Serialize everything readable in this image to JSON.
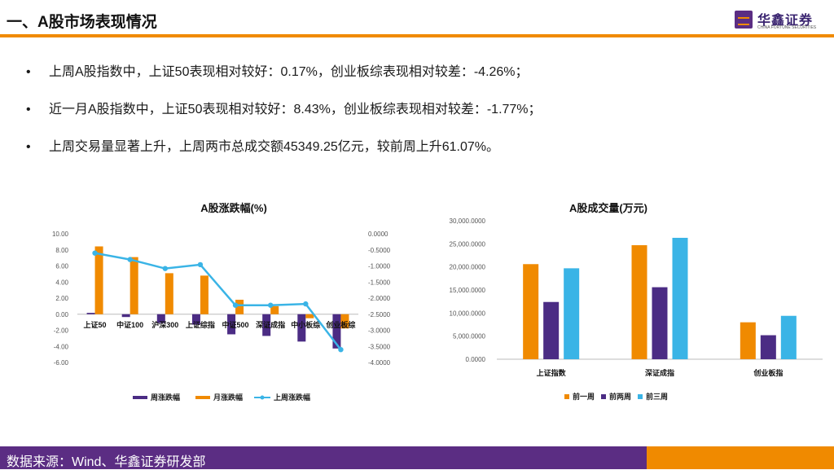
{
  "header": {
    "title": "一、A股市场表现情况"
  },
  "logo": {
    "name": "华鑫证券",
    "sub": "CHINA FORTUNE SECURITIES"
  },
  "bullets": [
    "上周A股指数中，上证50表现相对较好：0.17%，创业板综表现相对较差：-4.26%；",
    "近一月A股指数中，上证50表现相对较好：8.43%，创业板综表现相对较差：-1.77%；",
    "上周交易量显著上升，上周两市总成交额45349.25亿元，较前周上升61.07%。"
  ],
  "footer": {
    "source": "数据来源：Wind、华鑫证券研发部"
  },
  "chart_data": [
    {
      "type": "bar",
      "title": "A股涨跌幅(%)",
      "categories": [
        "上证50",
        "中证100",
        "沪深300",
        "上证综指",
        "中证500",
        "深证成指",
        "中小板综",
        "创业板综"
      ],
      "series": [
        {
          "name": "周涨跌幅",
          "type": "bar",
          "axis": "left",
          "color": "#4b2c84",
          "values": [
            0.17,
            -0.35,
            -1.1,
            -1.3,
            -2.5,
            -2.7,
            -3.4,
            -4.26
          ]
        },
        {
          "name": "月涨跌幅",
          "type": "bar",
          "axis": "left",
          "color": "#f08a00",
          "values": [
            8.43,
            7.1,
            5.1,
            4.8,
            1.8,
            1.0,
            -0.5,
            -1.77
          ]
        },
        {
          "name": "上周涨跌幅",
          "type": "line",
          "axis": "right",
          "color": "#3ab4e6",
          "values": [
            -0.6,
            -0.8,
            -1.08,
            -0.96,
            -2.22,
            -2.22,
            -2.18,
            -3.6
          ]
        }
      ],
      "yticks_left": [
        "10.00",
        "8.00",
        "6.00",
        "4.00",
        "2.00",
        "0.00",
        "-2.00",
        "-4.00",
        "-6.00"
      ],
      "yticks_right": [
        "0.0000",
        "-0.5000",
        "-1.0000",
        "-1.5000",
        "-2.0000",
        "-2.5000",
        "-3.0000",
        "-3.5000",
        "-4.0000"
      ],
      "ylim_left": [
        -6,
        10
      ],
      "ylim_right": [
        -4,
        0
      ],
      "legend_position": "bottom",
      "grid": false
    },
    {
      "type": "bar",
      "title": "A股成交量(万元)",
      "categories": [
        "上证指数",
        "深证成指",
        "创业板指"
      ],
      "series": [
        {
          "name": "前一周",
          "color": "#f08a00",
          "values": [
            20600,
            24700,
            8000
          ]
        },
        {
          "name": "前两周",
          "color": "#4b2c84",
          "values": [
            12400,
            15600,
            5200
          ]
        },
        {
          "name": "前三周",
          "color": "#3ab4e6",
          "values": [
            19700,
            26300,
            9400
          ]
        }
      ],
      "yticks": [
        "30,000.0000",
        "25,000.0000",
        "20,000.0000",
        "15,000.0000",
        "10,000.0000",
        "5,000.0000",
        "0.0000"
      ],
      "ylim": [
        0,
        30000
      ],
      "legend_position": "bottom",
      "grid": false
    }
  ]
}
